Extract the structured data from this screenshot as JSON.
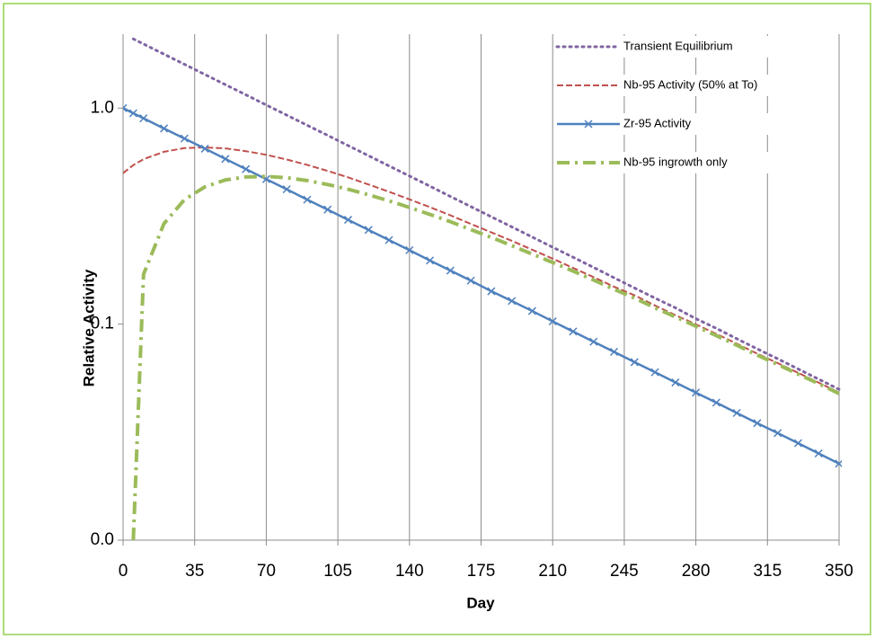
{
  "chart_data": {
    "type": "line",
    "y_label": "Relative Activity",
    "x_label": "Day",
    "log_y": true,
    "grid_x": true,
    "legend": "top-right",
    "xlim": [
      0,
      350
    ],
    "xticks": [
      0,
      35,
      70,
      105,
      140,
      175,
      210,
      245,
      280,
      315,
      350
    ],
    "ylim": [
      0.01,
      2.2
    ],
    "yticks": [
      {
        "value": 0.01,
        "label": "0.0"
      },
      {
        "value": 0.1,
        "label": "0.1"
      },
      {
        "value": 1,
        "label": "1.0"
      }
    ],
    "x": [
      0,
      5,
      10,
      20,
      30,
      40,
      50,
      60,
      70,
      80,
      90,
      100,
      110,
      120,
      130,
      140,
      150,
      160,
      170,
      180,
      190,
      200,
      210,
      220,
      230,
      240,
      250,
      260,
      270,
      280,
      290,
      300,
      310,
      320,
      330,
      340,
      350
    ],
    "series": [
      {
        "name": "Transient Equilibrium",
        "color": "#8064a2",
        "dash": "dot",
        "values": [
          null,
          2.091,
          1.981,
          1.777,
          1.595,
          1.431,
          1.284,
          1.153,
          1.034,
          0.928,
          0.833,
          0.748,
          0.671,
          0.602,
          0.54,
          0.485,
          0.435,
          0.39,
          0.35,
          0.314,
          0.282,
          0.253,
          0.227,
          0.204,
          0.183,
          0.164,
          0.147,
          0.132,
          0.119,
          0.106,
          0.0956,
          0.0856,
          0.0768,
          0.0691,
          0.062,
          0.0556,
          0.0499
        ]
      },
      {
        "name": "Nb-95 Activity (50% at To)",
        "color": "#c0504d",
        "dash": "dash",
        "values": [
          0.5,
          0.545,
          0.58,
          0.628,
          0.653,
          0.658,
          0.651,
          0.632,
          0.608,
          0.578,
          0.546,
          0.512,
          0.478,
          0.443,
          0.41,
          0.378,
          0.348,
          0.319,
          0.291,
          0.266,
          0.243,
          0.221,
          0.201,
          0.182,
          0.165,
          0.149,
          0.136,
          0.122,
          0.11,
          0.0998,
          0.0901,
          0.0812,
          0.073,
          0.066,
          0.0595,
          0.0536,
          0.0482
        ]
      },
      {
        "name": "Zr-95 Activity",
        "color": "#4f81bd",
        "dash": "solid",
        "marker": "x",
        "values": [
          1,
          0.947,
          0.897,
          0.805,
          0.723,
          0.649,
          0.582,
          0.522,
          0.469,
          0.421,
          0.377,
          0.339,
          0.304,
          0.273,
          0.245,
          0.22,
          0.197,
          0.177,
          0.159,
          0.142,
          0.128,
          0.115,
          0.103,
          0.0924,
          0.0829,
          0.0744,
          0.0667,
          0.0599,
          0.0537,
          0.0482,
          0.0433,
          0.0388,
          0.0348,
          0.0313,
          0.0281,
          0.0252,
          0.0226
        ]
      },
      {
        "name": "Nb-95 ingrowth only",
        "color": "#9bbb59",
        "dash": "dashdot",
        "values": [
          null,
          0.01,
          0.17,
          0.292,
          0.377,
          0.432,
          0.465,
          0.48,
          0.483,
          0.476,
          0.462,
          0.443,
          0.421,
          0.397,
          0.372,
          0.347,
          0.322,
          0.298,
          0.274,
          0.252,
          0.231,
          0.211,
          0.193,
          0.176,
          0.16,
          0.145,
          0.132,
          0.119,
          0.108,
          0.0978,
          0.0885,
          0.0799,
          0.0719,
          0.0651,
          0.0587,
          0.053,
          0.0477
        ]
      }
    ]
  }
}
